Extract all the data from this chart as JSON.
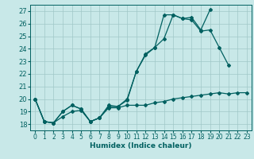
{
  "xlabel": "Humidex (Indice chaleur)",
  "bg_color": "#c8e8e8",
  "grid_color": "#a0c8c8",
  "line_color": "#006060",
  "xlim": [
    -0.5,
    23.5
  ],
  "ylim": [
    17.5,
    27.5
  ],
  "xticks": [
    0,
    1,
    2,
    3,
    4,
    5,
    6,
    7,
    8,
    9,
    10,
    11,
    12,
    13,
    14,
    15,
    16,
    17,
    18,
    19,
    20,
    21,
    22,
    23
  ],
  "yticks": [
    18,
    19,
    20,
    21,
    22,
    23,
    24,
    25,
    26,
    27
  ],
  "series": [
    {
      "x": [
        0,
        1,
        2,
        3,
        4,
        5,
        6,
        7,
        8,
        9,
        10,
        11,
        12,
        13,
        14,
        15,
        16,
        17,
        18,
        19,
        20,
        21,
        22,
        23
      ],
      "y": [
        20.0,
        18.2,
        18.1,
        18.6,
        19.0,
        19.1,
        18.2,
        18.5,
        19.3,
        19.3,
        19.5,
        19.5,
        19.5,
        19.7,
        19.8,
        20.0,
        20.1,
        20.2,
        20.3,
        20.4,
        20.5,
        20.4,
        20.5,
        20.5
      ]
    },
    {
      "x": [
        0,
        1,
        2,
        3,
        4,
        5,
        6,
        7,
        8,
        9,
        10,
        11,
        12,
        13,
        14,
        15,
        16,
        17,
        18,
        19,
        20,
        21
      ],
      "y": [
        20.0,
        18.2,
        18.1,
        19.0,
        19.5,
        19.2,
        18.2,
        18.5,
        19.4,
        19.4,
        20.0,
        22.2,
        23.5,
        24.1,
        24.8,
        26.7,
        26.4,
        26.3,
        25.4,
        25.5,
        24.1,
        22.7
      ]
    },
    {
      "x": [
        0,
        1,
        2,
        3,
        4,
        5,
        6,
        7,
        8,
        9,
        10,
        11,
        12,
        13,
        14,
        15,
        16,
        17,
        18,
        19
      ],
      "y": [
        20.0,
        18.2,
        18.1,
        19.0,
        19.5,
        19.2,
        18.2,
        18.5,
        19.5,
        19.4,
        19.9,
        22.2,
        23.6,
        24.1,
        26.7,
        26.7,
        26.4,
        26.5,
        25.5,
        27.1
      ]
    }
  ]
}
